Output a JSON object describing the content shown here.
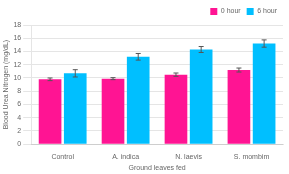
{
  "chart_data": {
    "type": "bar",
    "categories": [
      "Control",
      "A. indica",
      "N. laevis",
      "S. mombim"
    ],
    "series": [
      {
        "name": "0 hour",
        "color": "#FF1493",
        "values": [
          9.8,
          9.9,
          10.5,
          11.2
        ],
        "errors": [
          0.2,
          0.15,
          0.25,
          0.3
        ]
      },
      {
        "name": "6 hour",
        "color": "#00BFFF",
        "values": [
          10.7,
          13.2,
          14.3,
          15.2
        ],
        "errors": [
          0.55,
          0.5,
          0.45,
          0.55
        ]
      }
    ],
    "xlabel": "Ground leaves fed",
    "ylabel": "Blood Urea Nitrogen (mg/dL)",
    "ylim": [
      0,
      18
    ],
    "yticks": [
      0,
      2,
      4,
      6,
      8,
      10,
      12,
      14,
      16,
      18
    ],
    "grid": true,
    "legend": "upper right"
  }
}
